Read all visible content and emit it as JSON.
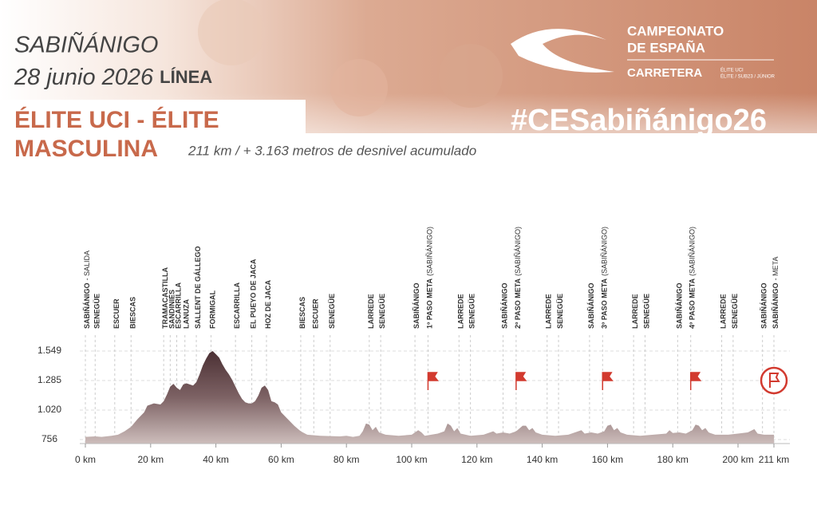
{
  "header": {
    "place": "SABIÑÁNIGO",
    "date": "28 junio 2026",
    "stage": "LÍNEA",
    "race_line1": "ÉLITE UCI - ÉLITE",
    "race_line2": "MASCULINA",
    "distance_note": "211 km / + 3.163 metros de desnivel acumulado",
    "hashtag": "#CESabiñánigo26",
    "logo": {
      "line1": "CAMPEONATO",
      "line2": "DE ESPAÑA",
      "line3": "CARRETERA",
      "sub1": "ÉLITE UCI",
      "sub2": "ÉLITE / SUB23 / JÚNIOR"
    }
  },
  "chart_data": {
    "type": "area",
    "color": "#4b3034",
    "grid": true,
    "x": [
      0,
      3,
      5,
      8,
      10,
      12,
      14,
      16,
      18,
      19,
      21,
      23,
      24,
      25,
      26,
      27,
      28,
      29,
      30,
      31,
      32,
      33,
      34,
      35,
      36,
      37,
      38,
      39,
      40,
      41,
      42,
      43,
      44,
      45,
      46,
      47,
      48,
      49,
      50,
      51,
      52,
      53,
      54,
      55,
      56,
      57,
      58,
      59,
      60,
      62,
      64,
      66,
      68,
      72,
      78,
      80,
      82,
      84,
      85,
      86,
      87,
      88,
      89,
      90,
      92,
      96,
      100,
      102,
      103,
      104,
      106,
      108,
      110,
      111,
      112,
      113,
      114,
      115,
      118,
      122,
      125,
      126,
      128,
      130,
      132,
      134,
      135,
      136,
      137,
      138,
      140,
      144,
      148,
      152,
      153,
      155,
      157,
      159,
      160,
      161,
      162,
      163,
      164,
      166,
      170,
      174,
      178,
      179,
      180,
      182,
      184,
      186,
      187,
      188,
      189,
      190,
      191,
      193,
      197,
      200,
      203,
      205,
      206,
      208,
      211
    ],
    "values": [
      780,
      785,
      780,
      790,
      800,
      830,
      870,
      940,
      1000,
      1060,
      1080,
      1070,
      1100,
      1160,
      1230,
      1255,
      1220,
      1200,
      1250,
      1260,
      1250,
      1240,
      1270,
      1340,
      1420,
      1480,
      1530,
      1549,
      1520,
      1490,
      1430,
      1380,
      1340,
      1290,
      1230,
      1170,
      1120,
      1090,
      1080,
      1080,
      1100,
      1150,
      1220,
      1240,
      1200,
      1100,
      1090,
      1070,
      1000,
      940,
      880,
      830,
      800,
      790,
      785,
      790,
      780,
      790,
      830,
      900,
      890,
      840,
      870,
      820,
      800,
      790,
      800,
      840,
      820,
      790,
      800,
      810,
      830,
      900,
      880,
      830,
      860,
      810,
      790,
      800,
      830,
      810,
      820,
      810,
      830,
      880,
      880,
      840,
      860,
      820,
      800,
      790,
      800,
      840,
      810,
      820,
      810,
      830,
      880,
      890,
      840,
      860,
      820,
      800,
      790,
      800,
      810,
      840,
      815,
      820,
      810,
      840,
      890,
      880,
      840,
      860,
      820,
      800,
      800,
      810,
      820,
      850,
      810,
      800,
      800
    ],
    "xlim": [
      0,
      211
    ],
    "ylim": [
      756,
      1549
    ],
    "yticks": [
      756,
      {
        "value": 1020,
        "label": "1.020"
      },
      {
        "value": 1285,
        "label": "1.285"
      },
      {
        "value": 1549,
        "label": "1.549"
      }
    ],
    "xticks": [
      {
        "value": 0,
        "label": "0 km"
      },
      {
        "value": 20,
        "label": "20 km"
      },
      {
        "value": 40,
        "label": "40 km"
      },
      {
        "value": 60,
        "label": "60 km"
      },
      {
        "value": 80,
        "label": "80 km"
      },
      {
        "value": 100,
        "label": "100 km"
      },
      {
        "value": 120,
        "label": "120 km"
      },
      {
        "value": 140,
        "label": "140 km"
      },
      {
        "value": 160,
        "label": "160 km"
      },
      {
        "value": 180,
        "label": "180 km"
      },
      {
        "value": 200,
        "label": "200 km"
      },
      {
        "value": 211,
        "label": "211 km"
      }
    ],
    "waypoints": [
      {
        "km": 0,
        "name": "SABIÑÁNIGO",
        "note": "- SALIDA"
      },
      {
        "km": 3,
        "name": "SENEGÜE"
      },
      {
        "km": 9,
        "name": "ESCUER"
      },
      {
        "km": 14,
        "name": "BIESCAS"
      },
      {
        "km": 24,
        "name": "TRAMACASTILLA"
      },
      {
        "km": 26,
        "name": "SANDINIÉS"
      },
      {
        "km": 28,
        "name": "ESCARRILLA"
      },
      {
        "km": 30.5,
        "name": "LANUZA"
      },
      {
        "km": 34,
        "name": "SALLENT DE GÁLLEGO"
      },
      {
        "km": 38.5,
        "name": "FORMIGAL"
      },
      {
        "km": 46,
        "name": "ESCARRILLA"
      },
      {
        "km": 51,
        "name": "EL PUEYO DE JACA"
      },
      {
        "km": 55.5,
        "name": "HOZ DE JACA"
      },
      {
        "km": 66,
        "name": "BIESCAS"
      },
      {
        "km": 70,
        "name": "ESCUER"
      },
      {
        "km": 75,
        "name": "SENEGÜE"
      },
      {
        "km": 87,
        "name": "LARREDE"
      },
      {
        "km": 90.5,
        "name": "SENEGÜE"
      },
      {
        "km": 101,
        "name": "SABIÑÁNIGO"
      },
      {
        "km": 105,
        "name": "1º PASO META",
        "note": "(SABIÑÁNIGO)",
        "flag": "sprint"
      },
      {
        "km": 114.5,
        "name": "LARREDE"
      },
      {
        "km": 118,
        "name": "SENEGÜE"
      },
      {
        "km": 128,
        "name": "SABIÑÁNIGO"
      },
      {
        "km": 132,
        "name": "2º PASO META",
        "note": "(SABIÑÁNIGO)",
        "flag": "sprint"
      },
      {
        "km": 141.5,
        "name": "LARREDE"
      },
      {
        "km": 145,
        "name": "SENEGÜE"
      },
      {
        "km": 154.5,
        "name": "SABIÑÁNIGO"
      },
      {
        "km": 158.5,
        "name": "3º PASO META",
        "note": "(SABIÑÁNIGO)",
        "flag": "sprint"
      },
      {
        "km": 168,
        "name": "LARREDE"
      },
      {
        "km": 171.5,
        "name": "SENEGÜE"
      },
      {
        "km": 181.5,
        "name": "SABIÑÁNIGO"
      },
      {
        "km": 185.5,
        "name": "4º PASO META",
        "note": "(SABIÑÁNIGO)",
        "flag": "sprint"
      },
      {
        "km": 195,
        "name": "LARREDE"
      },
      {
        "km": 198.5,
        "name": "SENEGÜE"
      },
      {
        "km": 207.5,
        "name": "SABIÑÁNIGO"
      },
      {
        "km": 211,
        "name": "SABIÑÁNIGO",
        "note": "- META",
        "flag": "finish"
      }
    ]
  }
}
